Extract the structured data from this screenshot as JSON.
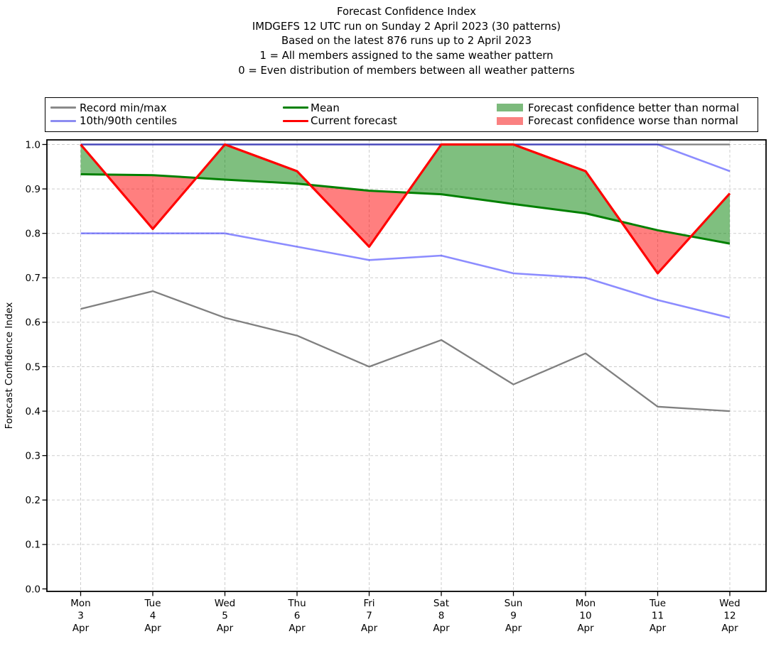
{
  "title_lines": [
    "Forecast Confidence Index",
    "IMDGEFS 12 UTC run on Sunday 2 April 2023 (30 patterns)",
    "Based on the latest 876 runs up to 2 April 2023",
    "1 = All members assigned to the same weather pattern",
    "0 = Even distribution of members between all weather patterns"
  ],
  "legend": {
    "items": [
      {
        "label": "Record min/max",
        "swatch": "line",
        "color": "#8a8a8a"
      },
      {
        "label": "10th/90th centiles",
        "swatch": "line",
        "color": "#8c8cf1"
      },
      {
        "label": "Mean",
        "swatch": "line",
        "color": "#008000"
      },
      {
        "label": "Current forecast",
        "swatch": "line",
        "color": "#ff0000"
      },
      {
        "label": "Forecast confidence better than normal",
        "swatch": "patch",
        "color": "#7cba7c"
      },
      {
        "label": "Forecast confidence worse than normal",
        "swatch": "patch",
        "color": "#fa8181"
      }
    ]
  },
  "chart_data": {
    "type": "line",
    "title": "Forecast Confidence Index",
    "xlabel": "",
    "ylabel": "Forecast Confidence Index",
    "ylim": [
      0.0,
      1.01
    ],
    "grid": true,
    "legend_position": "top",
    "categories": [
      [
        "Mon",
        "3",
        "Apr"
      ],
      [
        "Tue",
        "4",
        "Apr"
      ],
      [
        "Wed",
        "5",
        "Apr"
      ],
      [
        "Thu",
        "6",
        "Apr"
      ],
      [
        "Fri",
        "7",
        "Apr"
      ],
      [
        "Sat",
        "8",
        "Apr"
      ],
      [
        "Sun",
        "9",
        "Apr"
      ],
      [
        "Mon",
        "10",
        "Apr"
      ],
      [
        "Tue",
        "11",
        "Apr"
      ],
      [
        "Wed",
        "12",
        "Apr"
      ]
    ],
    "ytick_labels": [
      "0.0",
      "0.1",
      "0.2",
      "0.3",
      "0.4",
      "0.5",
      "0.6",
      "0.7",
      "0.8",
      "0.9",
      "1.0"
    ],
    "series": [
      {
        "name": "Record max",
        "color": "#808080",
        "width": 2.3,
        "opacity": 1,
        "values": [
          1.0,
          1.0,
          1.0,
          1.0,
          1.0,
          1.0,
          1.0,
          1.0,
          1.0,
          1.0
        ]
      },
      {
        "name": "Record min",
        "color": "#808080",
        "width": 2.3,
        "opacity": 1,
        "values": [
          0.63,
          0.67,
          0.61,
          0.57,
          0.5,
          0.56,
          0.46,
          0.53,
          0.41,
          0.4
        ]
      },
      {
        "name": "90th centile",
        "color": "#0000ff",
        "width": 2.6,
        "opacity": 0.45,
        "values": [
          1.0,
          1.0,
          1.0,
          1.0,
          1.0,
          1.0,
          1.0,
          1.0,
          1.0,
          0.94
        ]
      },
      {
        "name": "10th centile",
        "color": "#0000ff",
        "width": 2.6,
        "opacity": 0.45,
        "values": [
          0.8,
          0.8,
          0.8,
          0.77,
          0.74,
          0.75,
          0.71,
          0.7,
          0.65,
          0.61
        ]
      },
      {
        "name": "Mean",
        "color": "#008000",
        "width": 3.0,
        "opacity": 1,
        "values": [
          0.933,
          0.931,
          0.921,
          0.912,
          0.896,
          0.888,
          0.866,
          0.845,
          0.807,
          0.777
        ]
      },
      {
        "name": "Current forecast",
        "color": "#ff0000",
        "width": 3.2,
        "opacity": 1,
        "values": [
          1.0,
          0.81,
          1.0,
          0.94,
          0.77,
          1.0,
          1.0,
          0.94,
          0.71,
          0.89
        ]
      }
    ],
    "fills": {
      "between": [
        "Current forecast",
        "Mean"
      ],
      "better_than_normal_color": "#008000",
      "worse_than_normal_color": "#ff0000",
      "fill_opacity": 0.5
    }
  }
}
